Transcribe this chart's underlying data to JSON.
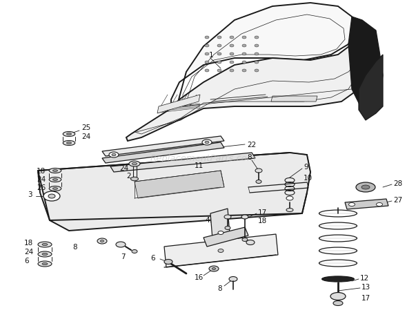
{
  "background_color": "#ffffff",
  "watermark_text": "ReplacementParts.com",
  "watermark_color": "#bbbbbb",
  "line_color": "#1a1a1a",
  "label_color": "#111111",
  "label_fontsize": 7.5,
  "fig_w": 5.9,
  "fig_h": 4.6,
  "dpi": 100
}
